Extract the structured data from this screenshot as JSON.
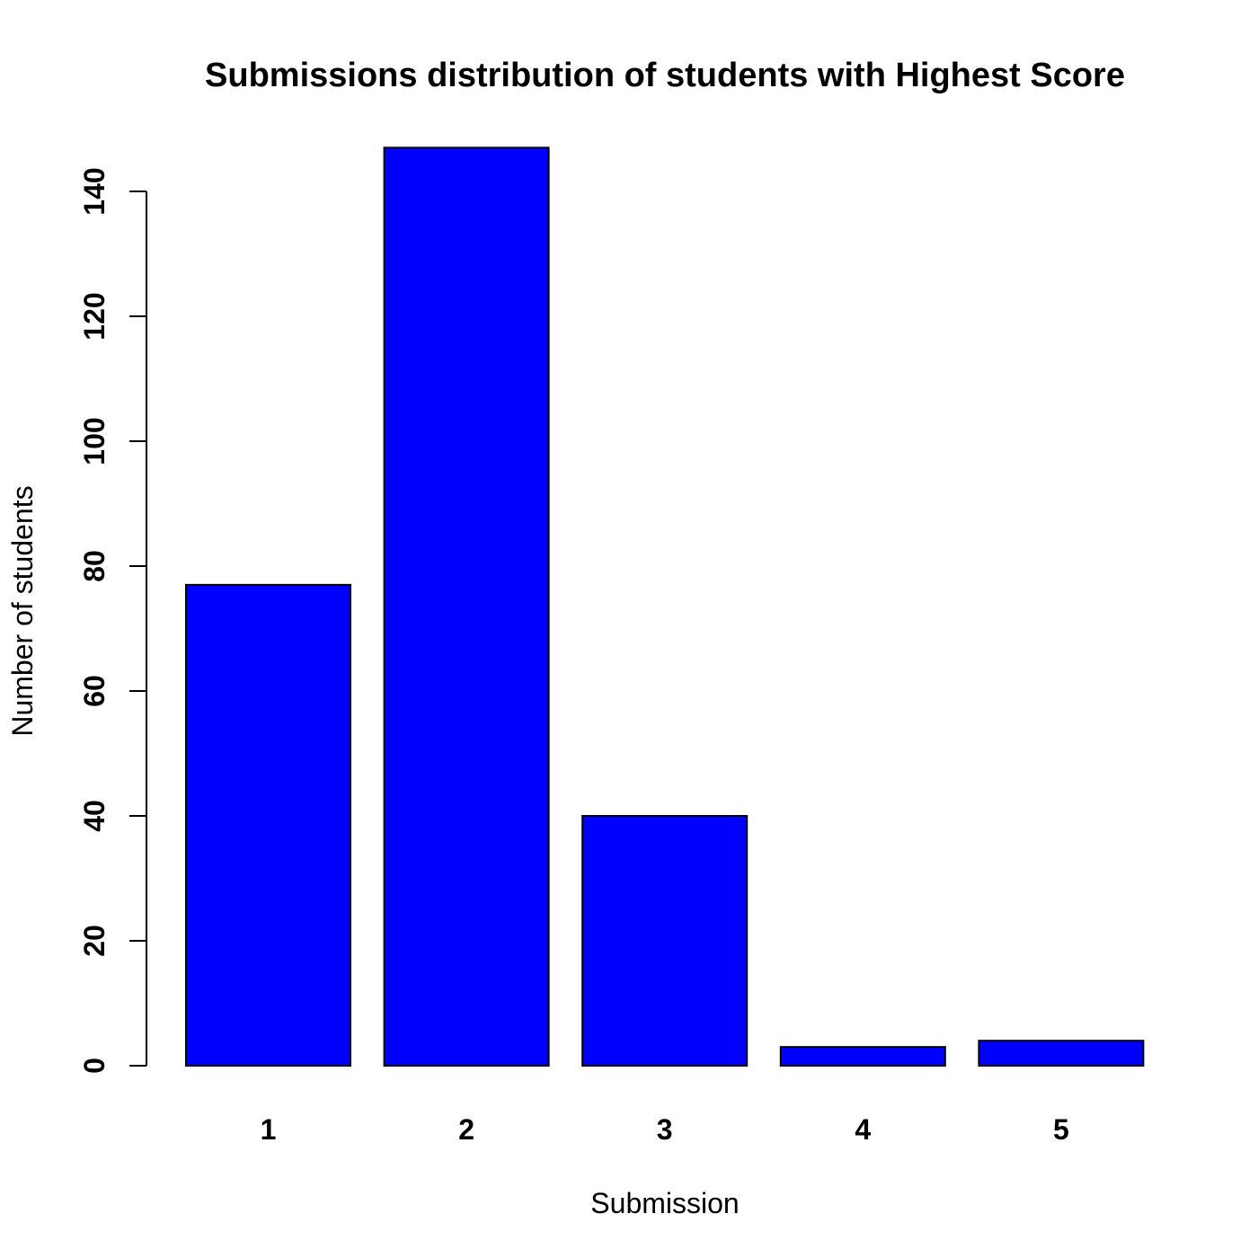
{
  "chart_data": {
    "type": "bar",
    "title": "Submissions distribution of students with Highest Score",
    "xlabel": "Submission",
    "ylabel": "Number of students",
    "categories": [
      "1",
      "2",
      "3",
      "4",
      "5"
    ],
    "values": [
      77,
      147,
      40,
      3,
      4
    ],
    "ylim": [
      0,
      147
    ],
    "yticks": [
      0,
      20,
      40,
      60,
      80,
      100,
      120,
      140
    ],
    "bar_color": "#0000ff",
    "grid": false,
    "legend": "none"
  }
}
